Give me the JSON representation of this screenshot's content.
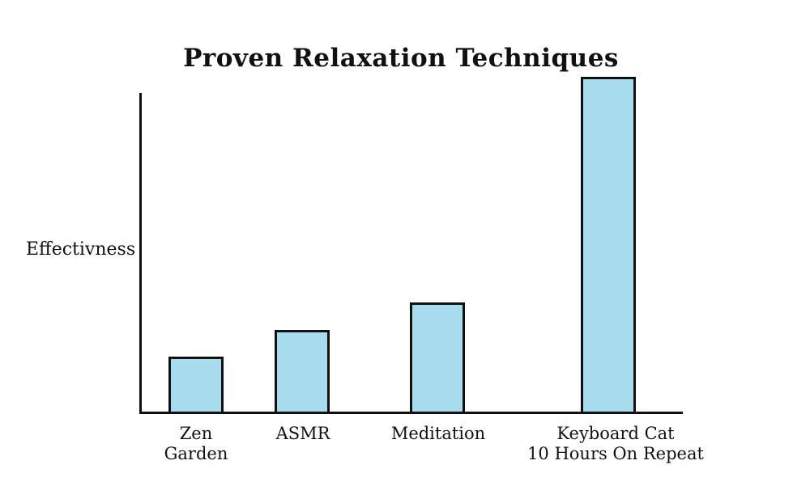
{
  "chart_data": {
    "type": "bar",
    "title": "Proven Relaxation Techniques",
    "xlabel": "",
    "ylabel": "Effectivness",
    "categories": [
      "Zen\nGarden",
      "ASMR",
      "Meditation",
      "Keyboard Cat\n10 Hours On Repeat"
    ],
    "values": [
      17,
      25,
      33,
      100
    ],
    "ylim": [
      0,
      100
    ],
    "layout_hints": {
      "grid": false,
      "legend": false,
      "axis_ticks": "none",
      "y_axis_numeric_labels": false,
      "tallest_bar_exceeds_y_axis_top": true,
      "bar_gap": "wide",
      "style": "hand-made meme chart, slab-serif typeface"
    }
  },
  "colors": {
    "background": "#FFFFFF",
    "bar_fill": "#A7DCEE",
    "bar_border": "#111111",
    "axis": "#111111",
    "text": "#111111"
  }
}
